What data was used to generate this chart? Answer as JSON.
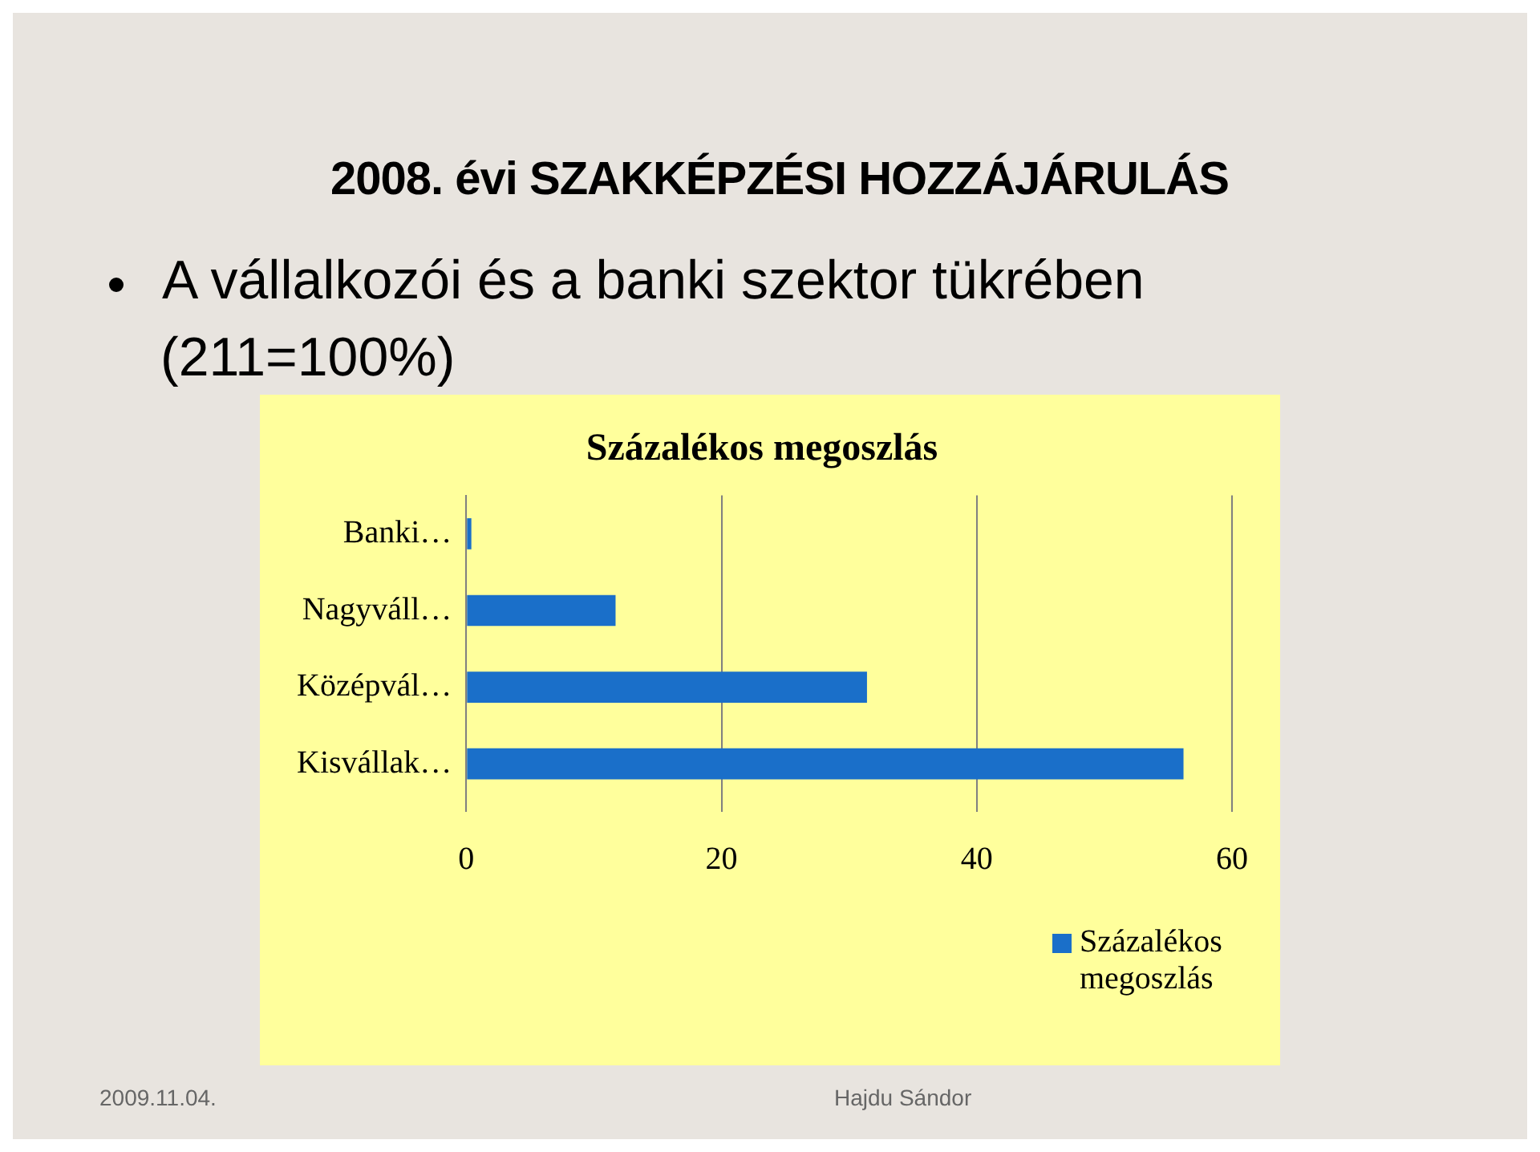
{
  "chart_data": {
    "type": "bar",
    "orientation": "horizontal",
    "title": "Százalékos megoszlás",
    "categories": [
      "Banki…",
      "Nagyváll…",
      "Középvál…",
      "Kisvállak…"
    ],
    "series": [
      {
        "name": "Százalékos megoszlás",
        "color": "#1a6fc9",
        "values": [
          0.4,
          11.7,
          31.4,
          56.2
        ]
      }
    ],
    "xlim": [
      0,
      60
    ],
    "xticks": [
      0,
      20,
      40,
      60
    ],
    "grid": "x",
    "legend": "bottom right",
    "annotations": [
      "2008. évi SZAKKÉPZÉSI HOZZÁJÁRULÁS",
      "A vállalkozói és a banki szektor tükrében",
      "(211=100%)",
      "2009.11.04.",
      "Hajdu Sándor"
    ]
  }
}
